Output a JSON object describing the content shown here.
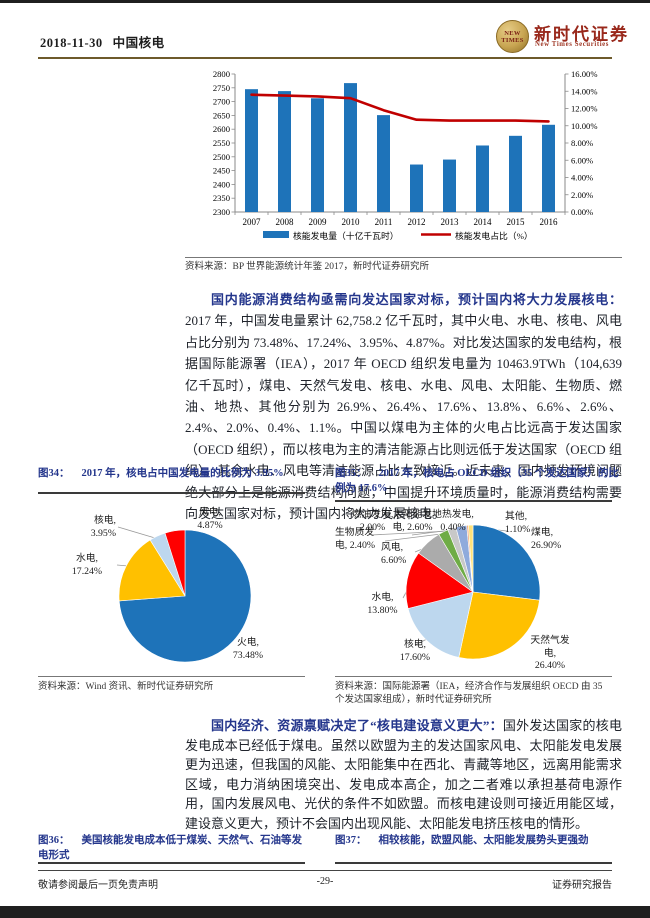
{
  "header": {
    "date": "2018-11-30",
    "title": "中国核电",
    "brand": {
      "logo_line1": "NEW",
      "logo_line2": "TIMES",
      "name_cn": "新时代证券",
      "name_en": "New Times Securities"
    }
  },
  "colors": {
    "bar_blue": "#1E73B9",
    "line_red": "#C00000",
    "navy": "#24368C",
    "gold": "#FFC000",
    "pale_blue": "#BDD7EE",
    "red": "#FF0000",
    "gray": "#ABABAB",
    "light_gray": "#C8C8C8",
    "green": "#6FAC46",
    "periwinkle": "#8FAADC",
    "salmon": "#F0A573",
    "pale_yellow": "#FFE27A"
  },
  "chart_data": [
    {
      "type": "bar",
      "subtype": "bar with secondary-axis line",
      "categories": [
        "2007",
        "2008",
        "2009",
        "2010",
        "2011",
        "2012",
        "2013",
        "2014",
        "2015",
        "2016"
      ],
      "series": [
        {
          "name": "核能发电量（十亿千瓦时）",
          "kind": "bar",
          "axis": "left",
          "color": "#1E73B9",
          "values": [
            2745,
            2738,
            2712,
            2767,
            2651,
            2472,
            2490,
            2541,
            2576,
            2616
          ]
        },
        {
          "name": "核能发电占比（%）",
          "kind": "line",
          "axis": "right",
          "color": "#C00000",
          "values": [
            13.6,
            13.5,
            13.4,
            13.2,
            11.8,
            10.7,
            10.6,
            10.6,
            10.6,
            10.5
          ]
        }
      ],
      "y_left": {
        "min": 2300,
        "max": 2800,
        "step": 50
      },
      "y_right": {
        "min": 0,
        "max": 16,
        "step": 2,
        "format": "0.00%"
      },
      "grid": false,
      "legend_position": "bottom",
      "source": "资料来源：BP 世界能源统计年鉴 2017，新时代证券研究所"
    },
    {
      "type": "pie",
      "fig_tag": "图34：",
      "title": "2017 年，核电占中国发电量的比例为 3.95%",
      "slices": [
        {
          "name": "火电",
          "pct": 73.48,
          "color": "#1E73B9",
          "label_lines": [
            "火电,",
            "73.48%"
          ]
        },
        {
          "name": "水电",
          "pct": 17.24,
          "color": "#FFC000",
          "label_lines": [
            "水电,",
            "17.24%"
          ]
        },
        {
          "name": "核电",
          "pct": 3.95,
          "color": "#BDD7EE",
          "label_lines": [
            "核电,",
            "3.95%"
          ]
        },
        {
          "name": "风电",
          "pct": 4.87,
          "color": "#FF0000",
          "label_lines": [
            "风电,",
            "4.87%"
          ]
        }
      ],
      "source": "资料来源：Wind 资讯、新时代证券研究所"
    },
    {
      "type": "pie",
      "fig_tag": "图35：",
      "title": "2017 年，核电占 OECD 组织（35 个发达国家）的比例为 17.6%",
      "slices": [
        {
          "name": "煤电",
          "pct": 26.9,
          "color": "#1E73B9",
          "label_lines": [
            "煤电,",
            "26.90%"
          ]
        },
        {
          "name": "天然气发电",
          "pct": 26.4,
          "color": "#FFC000",
          "label_lines": [
            "天然气发",
            "电,",
            "26.40%"
          ]
        },
        {
          "name": "核电",
          "pct": 17.6,
          "color": "#BDD7EE",
          "label_lines": [
            "核电,",
            "17.60%"
          ]
        },
        {
          "name": "水电",
          "pct": 13.8,
          "color": "#FF0000",
          "label_lines": [
            "水电,",
            "13.80%"
          ]
        },
        {
          "name": "风电",
          "pct": 6.6,
          "color": "#ABABAB",
          "label_lines": [
            "风电,",
            "6.60%"
          ]
        },
        {
          "name": "生物质发电",
          "pct": 2.4,
          "color": "#6FAC46",
          "label_lines": [
            "生物质发",
            "电, 2.40%"
          ]
        },
        {
          "name": "燃油发电",
          "pct": 2.0,
          "color": "#C8C8C8",
          "label_lines": [
            "燃油发电,",
            "2.00%"
          ]
        },
        {
          "name": "太阳能发电",
          "pct": 2.6,
          "color": "#8FAADC",
          "label_lines": [
            "太阳能发",
            "电, 2.60%"
          ]
        },
        {
          "name": "地热发电",
          "pct": 0.4,
          "color": "#F0A573",
          "label_lines": [
            "地热发电,",
            "0.40%"
          ]
        },
        {
          "name": "其他",
          "pct": 1.1,
          "color": "#FFE27A",
          "label_lines": [
            "其他,",
            "1.10%"
          ]
        }
      ],
      "source": "资料来源：国际能源署（IEA，经济合作与发展组织 OECD 由 35 个发达国家组成），新时代证券研究所"
    }
  ],
  "paragraphs": [
    {
      "lead": "国内能源消费结构亟需向发达国家对标，预计国内将大力发展核电：",
      "body": "2017 年，中国发电量累计 62,758.2 亿千瓦时，其中火电、水电、核电、风电占比分别为 73.48%、17.24%、3.95%、4.87%。对比发达国家的发电结构，根据国际能源署（IEA），2017 年 OECD 组织发电量为 10463.9TWh（104,639 亿千瓦时），煤电、天然气发电、核电、水电、风电、太阳能、生物质、燃油、地热、其他分别为 26.9%、26.4%、17.6%、13.8%、6.6%、2.6%、2.4%、2.0%、0.4%、1.1%。中国以煤电为主体的火电占比远高于发达国家（OECD 组织），而以核电为主的清洁能源占比则远低于发达国家（OECD 组织），其余水电、风电等清洁能源占比大致接近。近未来，国内频发环境问题绝大部分上是能源消费结构问题，中国提升环境质量时，能源消费结构需要向发达国家对标，预计国内将大力发展核电。"
    },
    {
      "lead": "国内经济、资源禀赋决定了“核电建设意义更大”：",
      "body": "国外发达国家的核电发电成本已经低于煤电。虽然以欧盟为主的发达国家风电、太阳能发电发展更为迅速，但我国的风能、太阳能集中在西北、青藏等地区，远离用能需求区域，电力消纳困境突出、发电成本高企，加之二者难以承担基荷电源作用，国内发展风电、光伏的条件不如欧盟。而核电建设则可接近用能区域，建设意义更大，预计不会国内出现风能、太阳能发电挤压核电的情形。"
    }
  ],
  "figures_row2": [
    {
      "fig_tag": "图36：",
      "title": "美国核能发电成本低于煤炭、天然气、石油等发电形式"
    },
    {
      "fig_tag": "图37：",
      "title": "相较核能，欧盟风能、太阳能发展势头更强劲"
    }
  ],
  "footer": {
    "left": "敬请参阅最后一页免责声明",
    "page": "-29-",
    "right": "证券研究报告"
  }
}
